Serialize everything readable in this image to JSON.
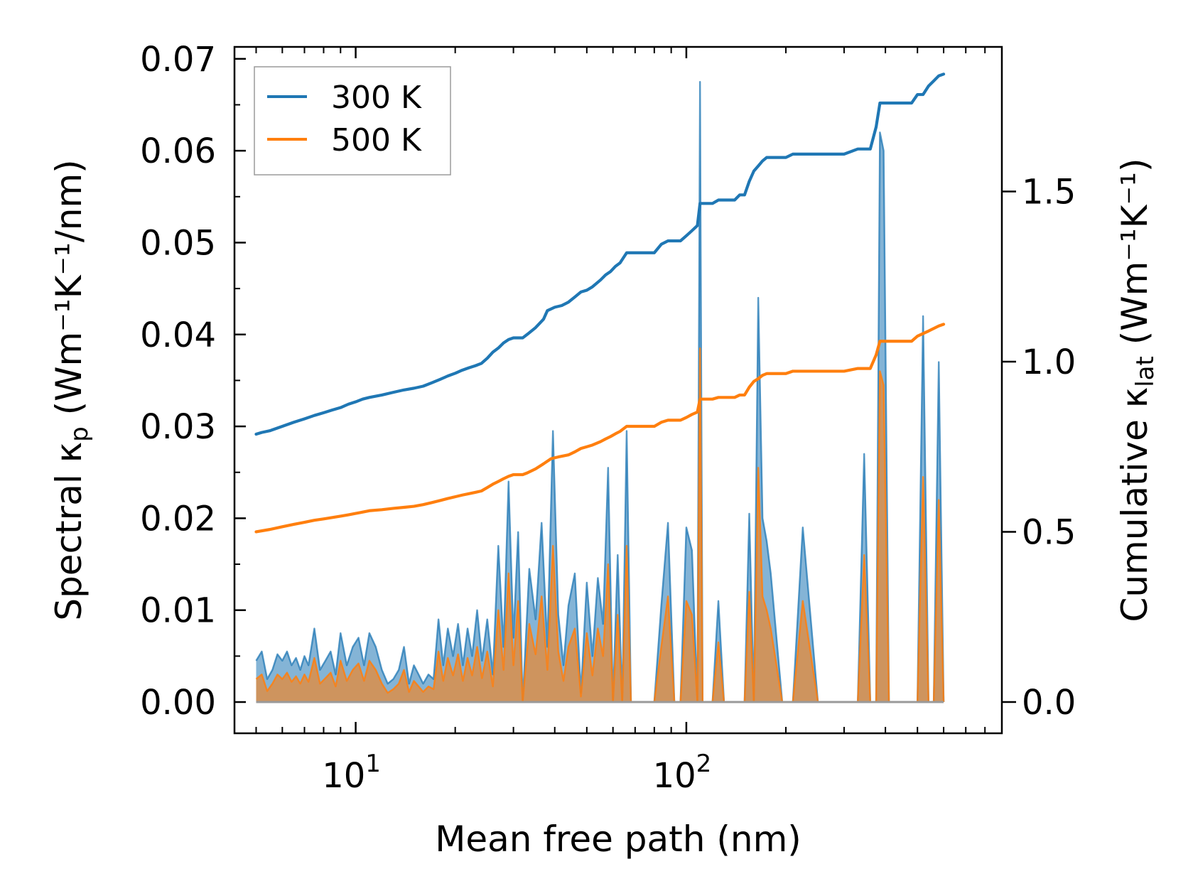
{
  "chart_data": {
    "type": "line",
    "x_scale": "log",
    "xlabel": "Mean free path (nm)",
    "ylabel_left": {
      "prefix": "Spectral κ",
      "sub": "p",
      "units": " (Wm⁻¹K⁻¹/nm)"
    },
    "ylabel_right": {
      "prefix": "Cumulative κ",
      "sub": "lat",
      "units": " (Wm⁻¹K⁻¹)"
    },
    "xlim": [
      4.3,
      900
    ],
    "ylim_left": [
      -0.0034,
      0.0713
    ],
    "ylim_right": [
      -0.092,
      1.925
    ],
    "x_ticks": [
      {
        "value": 10,
        "base": "10",
        "exp": "1"
      },
      {
        "value": 100,
        "base": "10",
        "exp": "2"
      }
    ],
    "y_ticks_left": [
      {
        "value": 0.0,
        "label": "0.00"
      },
      {
        "value": 0.01,
        "label": "0.01"
      },
      {
        "value": 0.02,
        "label": "0.02"
      },
      {
        "value": 0.03,
        "label": "0.03"
      },
      {
        "value": 0.04,
        "label": "0.04"
      },
      {
        "value": 0.05,
        "label": "0.05"
      },
      {
        "value": 0.06,
        "label": "0.06"
      },
      {
        "value": 0.07,
        "label": "0.07"
      }
    ],
    "y_ticks_right": [
      {
        "value": 0.0,
        "label": "0.0"
      },
      {
        "value": 0.5,
        "label": "0.5"
      },
      {
        "value": 1.0,
        "label": "1.0"
      },
      {
        "value": 1.5,
        "label": "1.5"
      }
    ],
    "legend": {
      "position": "top-left",
      "entries": [
        "300 K",
        "500 K"
      ]
    },
    "colors": {
      "300 K": "#1f77b4",
      "500 K": "#ff7f0e"
    },
    "spectral_x": [
      5.0,
      5.2,
      5.4,
      5.6,
      5.8,
      6.0,
      6.2,
      6.4,
      6.6,
      6.8,
      7.0,
      7.2,
      7.5,
      7.8,
      8.1,
      8.4,
      8.7,
      9.0,
      9.4,
      9.8,
      10.2,
      10.6,
      11.0,
      11.5,
      12.0,
      12.5,
      13.0,
      13.5,
      14.0,
      14.5,
      15.0,
      15.5,
      16.0,
      16.6,
      17.2,
      17.8,
      18.4,
      19.0,
      19.7,
      20.4,
      21.1,
      21.8,
      22.5,
      23.3,
      24.1,
      25.0,
      26.0,
      27.0,
      28.0,
      29.0,
      30.0,
      31.0,
      32.0,
      33.5,
      35.0,
      36.5,
      38.0,
      39.5,
      41.0,
      42.5,
      44.0,
      46.0,
      48.0,
      50.0,
      52.0,
      54.0,
      56.0,
      58.0,
      60.0,
      62.0,
      64.0,
      66.0,
      68.0,
      72.0,
      76.0,
      80.0,
      84.0,
      88.0,
      92.0,
      96.0,
      100.0,
      104.0,
      108.0,
      110.0,
      112.0,
      114.0,
      120.0,
      125.0,
      130.0,
      135.0,
      140.0,
      145.0,
      150.0,
      155.0,
      160.0,
      165.0,
      170.0,
      175.0,
      180.0,
      195.0,
      210.0,
      225.0,
      250.0,
      300.0,
      330.0,
      345.0,
      360.0,
      375.0,
      385.0,
      395.0,
      410.0,
      450.0,
      480.0,
      500.0,
      520.0,
      540.0,
      560.0,
      580.0,
      600.0
    ],
    "series": [
      {
        "name": "300 K",
        "spectral": [
          0.0045,
          0.0055,
          0.0025,
          0.0035,
          0.0052,
          0.0045,
          0.0055,
          0.004,
          0.0048,
          0.0035,
          0.005,
          0.004,
          0.008,
          0.0035,
          0.0045,
          0.0055,
          0.003,
          0.0075,
          0.004,
          0.006,
          0.007,
          0.004,
          0.0075,
          0.006,
          0.0035,
          0.002,
          0.0025,
          0.0035,
          0.006,
          0.002,
          0.004,
          0.003,
          0.002,
          0.003,
          0.0025,
          0.009,
          0.004,
          0.008,
          0.005,
          0.0085,
          0.004,
          0.008,
          0.005,
          0.01,
          0.0045,
          0.009,
          0.003,
          0.017,
          0.006,
          0.024,
          0.007,
          0.0185,
          0.0,
          0.0145,
          0.009,
          0.0195,
          0.006,
          0.0295,
          0.0095,
          0.004,
          0.0105,
          0.014,
          0.001,
          0.013,
          0.005,
          0.0135,
          0.0085,
          0.0255,
          0.0,
          0.016,
          0.0,
          0.0295,
          0.0,
          0.0,
          0.0,
          0.0,
          0.0105,
          0.0195,
          0.0,
          0.0,
          0.019,
          0.0165,
          0.0,
          0.0675,
          0.0,
          0.0,
          0.0,
          0.011,
          0.0,
          0.0,
          0.0,
          0.0,
          0.0,
          0.0205,
          0.0,
          0.044,
          0.02,
          0.0175,
          0.014,
          0.0,
          0.0,
          0.019,
          0.0,
          0.0,
          0.0,
          0.027,
          0.0,
          0.0,
          0.062,
          0.06,
          0.0,
          0.0,
          0.0,
          0.0,
          0.042,
          0.0,
          0.0,
          0.037,
          0.0
        ],
        "cumulative": [
          [
            5.0,
            0.787
          ],
          [
            5.2,
            0.792
          ],
          [
            5.5,
            0.797
          ],
          [
            6.0,
            0.81
          ],
          [
            6.5,
            0.822
          ],
          [
            7.0,
            0.832
          ],
          [
            7.5,
            0.842
          ],
          [
            8.0,
            0.85
          ],
          [
            8.5,
            0.858
          ],
          [
            9.0,
            0.865
          ],
          [
            9.5,
            0.875
          ],
          [
            10.0,
            0.882
          ],
          [
            10.5,
            0.89
          ],
          [
            11.0,
            0.895
          ],
          [
            12.0,
            0.902
          ],
          [
            13.0,
            0.91
          ],
          [
            14.0,
            0.917
          ],
          [
            15.0,
            0.922
          ],
          [
            16.0,
            0.928
          ],
          [
            17.0,
            0.938
          ],
          [
            18.0,
            0.948
          ],
          [
            19.0,
            0.958
          ],
          [
            20.0,
            0.966
          ],
          [
            21.0,
            0.975
          ],
          [
            22.0,
            0.982
          ],
          [
            23.0,
            0.988
          ],
          [
            24.0,
            0.995
          ],
          [
            25.0,
            1.01
          ],
          [
            26.0,
            1.028
          ],
          [
            27.0,
            1.04
          ],
          [
            28.0,
            1.055
          ],
          [
            29.0,
            1.065
          ],
          [
            30.0,
            1.07
          ],
          [
            31.0,
            1.07
          ],
          [
            32.0,
            1.07
          ],
          [
            33.0,
            1.08
          ],
          [
            35.0,
            1.1
          ],
          [
            37.0,
            1.125
          ],
          [
            38.0,
            1.15
          ],
          [
            40.0,
            1.16
          ],
          [
            42.0,
            1.165
          ],
          [
            44.0,
            1.175
          ],
          [
            46.0,
            1.19
          ],
          [
            48.0,
            1.205
          ],
          [
            50.0,
            1.21
          ],
          [
            52.0,
            1.22
          ],
          [
            55.0,
            1.24
          ],
          [
            57.0,
            1.255
          ],
          [
            59.0,
            1.265
          ],
          [
            61.0,
            1.28
          ],
          [
            63.0,
            1.29
          ],
          [
            66.0,
            1.32
          ],
          [
            70.0,
            1.32
          ],
          [
            75.0,
            1.32
          ],
          [
            80.0,
            1.32
          ],
          [
            84.0,
            1.345
          ],
          [
            88.0,
            1.355
          ],
          [
            92.0,
            1.355
          ],
          [
            96.0,
            1.355
          ],
          [
            100.0,
            1.37
          ],
          [
            104.0,
            1.385
          ],
          [
            108.0,
            1.4
          ],
          [
            110.0,
            1.465
          ],
          [
            115.0,
            1.465
          ],
          [
            120.0,
            1.465
          ],
          [
            125.0,
            1.475
          ],
          [
            130.0,
            1.475
          ],
          [
            140.0,
            1.475
          ],
          [
            145.0,
            1.49
          ],
          [
            150.0,
            1.49
          ],
          [
            155.0,
            1.53
          ],
          [
            160.0,
            1.56
          ],
          [
            165.0,
            1.575
          ],
          [
            170.0,
            1.59
          ],
          [
            175.0,
            1.6
          ],
          [
            200.0,
            1.6
          ],
          [
            210.0,
            1.61
          ],
          [
            230.0,
            1.61
          ],
          [
            250.0,
            1.61
          ],
          [
            300.0,
            1.61
          ],
          [
            330.0,
            1.625
          ],
          [
            360.0,
            1.625
          ],
          [
            375.0,
            1.69
          ],
          [
            385.0,
            1.76
          ],
          [
            395.0,
            1.76
          ],
          [
            420.0,
            1.76
          ],
          [
            450.0,
            1.76
          ],
          [
            480.0,
            1.76
          ],
          [
            500.0,
            1.785
          ],
          [
            520.0,
            1.785
          ],
          [
            540.0,
            1.81
          ],
          [
            560.0,
            1.825
          ],
          [
            580.0,
            1.84
          ],
          [
            600.0,
            1.845
          ]
        ]
      },
      {
        "name": "500 K",
        "spectral": [
          0.0025,
          0.003,
          0.0012,
          0.002,
          0.003,
          0.0025,
          0.0032,
          0.0022,
          0.0028,
          0.002,
          0.003,
          0.0022,
          0.0048,
          0.002,
          0.0026,
          0.0032,
          0.0017,
          0.0045,
          0.0023,
          0.0035,
          0.0042,
          0.0023,
          0.0045,
          0.0035,
          0.002,
          0.001,
          0.0014,
          0.002,
          0.0035,
          0.0011,
          0.0023,
          0.0017,
          0.0011,
          0.0017,
          0.0014,
          0.0055,
          0.0023,
          0.0048,
          0.0029,
          0.0052,
          0.0023,
          0.0048,
          0.0029,
          0.006,
          0.0026,
          0.0055,
          0.0017,
          0.01,
          0.0035,
          0.014,
          0.004,
          0.011,
          0.0,
          0.0085,
          0.0052,
          0.0115,
          0.0035,
          0.017,
          0.0055,
          0.0023,
          0.006,
          0.008,
          0.0006,
          0.0075,
          0.0029,
          0.008,
          0.005,
          0.015,
          0.0,
          0.0095,
          0.0,
          0.017,
          0.0,
          0.0,
          0.0,
          0.0,
          0.006,
          0.0115,
          0.0,
          0.0,
          0.011,
          0.0095,
          0.0,
          0.0385,
          0.0,
          0.0,
          0.0,
          0.0065,
          0.0,
          0.0,
          0.0,
          0.0,
          0.0,
          0.012,
          0.0,
          0.0255,
          0.0115,
          0.01,
          0.008,
          0.0,
          0.0,
          0.011,
          0.0,
          0.0,
          0.0,
          0.016,
          0.0,
          0.0,
          0.036,
          0.0345,
          0.0,
          0.0,
          0.0,
          0.0,
          0.0245,
          0.0,
          0.0,
          0.022,
          0.0
        ],
        "cumulative": [
          [
            5.0,
            0.5
          ],
          [
            5.5,
            0.507
          ],
          [
            6.0,
            0.515
          ],
          [
            6.5,
            0.522
          ],
          [
            7.0,
            0.528
          ],
          [
            7.5,
            0.534
          ],
          [
            8.0,
            0.538
          ],
          [
            8.5,
            0.542
          ],
          [
            9.0,
            0.546
          ],
          [
            9.5,
            0.55
          ],
          [
            10.0,
            0.554
          ],
          [
            10.5,
            0.558
          ],
          [
            11.0,
            0.562
          ],
          [
            12.0,
            0.565
          ],
          [
            13.0,
            0.569
          ],
          [
            14.0,
            0.572
          ],
          [
            15.0,
            0.575
          ],
          [
            16.0,
            0.58
          ],
          [
            17.0,
            0.586
          ],
          [
            18.0,
            0.592
          ],
          [
            19.0,
            0.598
          ],
          [
            20.0,
            0.603
          ],
          [
            21.0,
            0.608
          ],
          [
            22.0,
            0.612
          ],
          [
            23.0,
            0.616
          ],
          [
            24.0,
            0.62
          ],
          [
            25.0,
            0.63
          ],
          [
            26.0,
            0.64
          ],
          [
            27.0,
            0.648
          ],
          [
            28.0,
            0.656
          ],
          [
            29.0,
            0.663
          ],
          [
            30.0,
            0.668
          ],
          [
            32.0,
            0.668
          ],
          [
            33.0,
            0.673
          ],
          [
            35.0,
            0.685
          ],
          [
            37.0,
            0.7
          ],
          [
            39.0,
            0.715
          ],
          [
            41.0,
            0.72
          ],
          [
            44.0,
            0.726
          ],
          [
            46.0,
            0.735
          ],
          [
            48.0,
            0.745
          ],
          [
            50.0,
            0.75
          ],
          [
            52.0,
            0.755
          ],
          [
            55.0,
            0.765
          ],
          [
            57.0,
            0.773
          ],
          [
            59.0,
            0.78
          ],
          [
            61.0,
            0.788
          ],
          [
            63.0,
            0.795
          ],
          [
            66.0,
            0.81
          ],
          [
            75.0,
            0.81
          ],
          [
            80.0,
            0.81
          ],
          [
            84.0,
            0.822
          ],
          [
            88.0,
            0.828
          ],
          [
            96.0,
            0.828
          ],
          [
            100.0,
            0.836
          ],
          [
            104.0,
            0.845
          ],
          [
            108.0,
            0.852
          ],
          [
            110.0,
            0.89
          ],
          [
            120.0,
            0.89
          ],
          [
            125.0,
            0.895
          ],
          [
            140.0,
            0.895
          ],
          [
            145.0,
            0.902
          ],
          [
            150.0,
            0.902
          ],
          [
            155.0,
            0.925
          ],
          [
            160.0,
            0.942
          ],
          [
            165.0,
            0.95
          ],
          [
            170.0,
            0.96
          ],
          [
            175.0,
            0.965
          ],
          [
            200.0,
            0.965
          ],
          [
            210.0,
            0.972
          ],
          [
            250.0,
            0.972
          ],
          [
            300.0,
            0.972
          ],
          [
            330.0,
            0.98
          ],
          [
            360.0,
            0.98
          ],
          [
            375.0,
            1.02
          ],
          [
            385.0,
            1.06
          ],
          [
            420.0,
            1.06
          ],
          [
            480.0,
            1.06
          ],
          [
            500.0,
            1.075
          ],
          [
            540.0,
            1.09
          ],
          [
            580.0,
            1.105
          ],
          [
            600.0,
            1.11
          ]
        ]
      }
    ]
  }
}
